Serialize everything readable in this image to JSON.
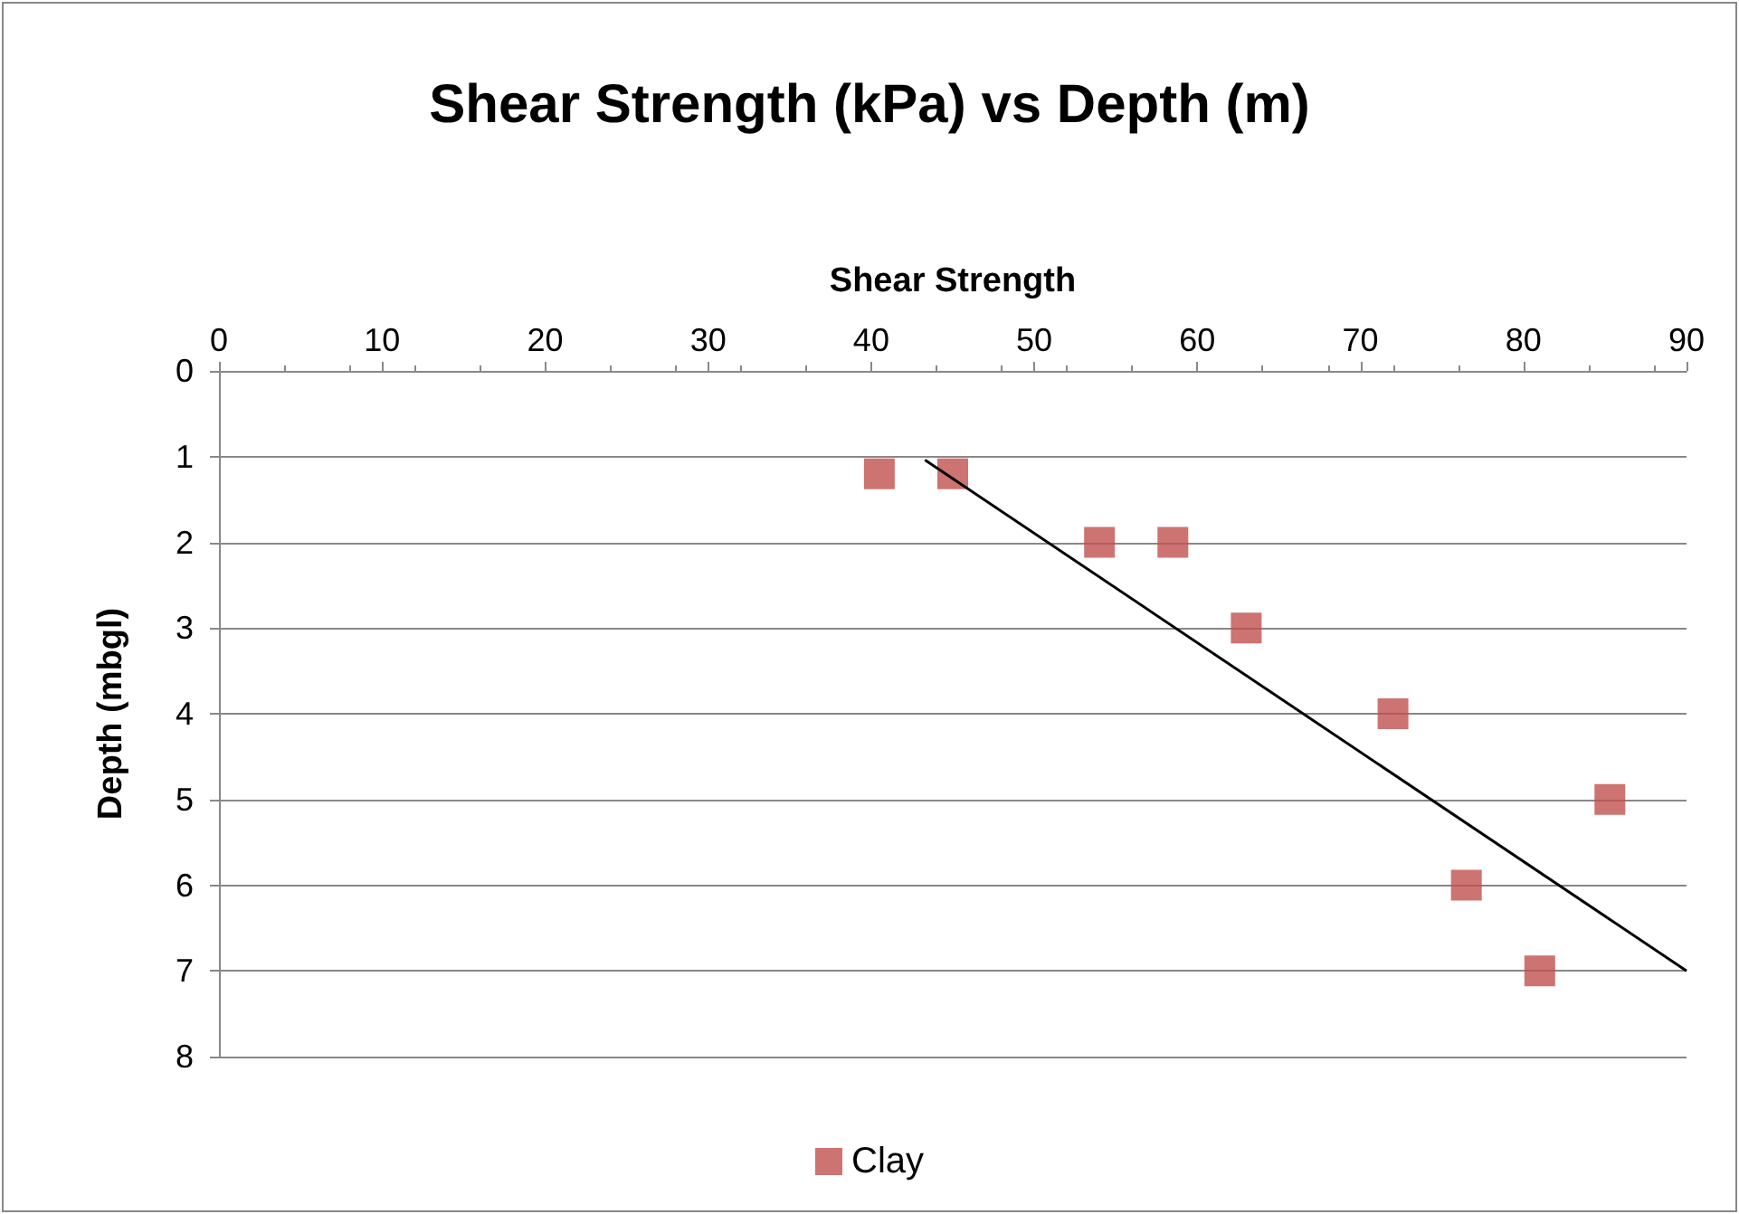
{
  "chart_data": {
    "type": "scatter",
    "title": "Shear Strength (kPa) vs Depth (m)",
    "xlabel": "Shear Strength",
    "ylabel": "Depth (mbgl)",
    "xlim": [
      0,
      90
    ],
    "xticks": [
      0,
      10,
      20,
      30,
      40,
      50,
      60,
      70,
      80,
      90
    ],
    "ylim": [
      8,
      0
    ],
    "yticks": [
      0,
      1,
      2,
      3,
      4,
      5,
      6,
      7,
      8
    ],
    "grid": "y",
    "legend": "bottom",
    "marker": "square",
    "series": [
      {
        "name": "Clay",
        "color": "#c0504d",
        "x": [
          40.5,
          45,
          54,
          58.5,
          63,
          72,
          85.3,
          76.5,
          81
        ],
        "values": [
          1.2,
          1.2,
          2,
          2,
          3,
          4,
          5,
          6,
          7
        ]
      },
      {
        "type": "line",
        "color": "#000000",
        "marker": "none",
        "line_style": "solid",
        "x": [
          43.3,
          90
        ],
        "values": [
          1.04,
          7
        ]
      }
    ]
  }
}
